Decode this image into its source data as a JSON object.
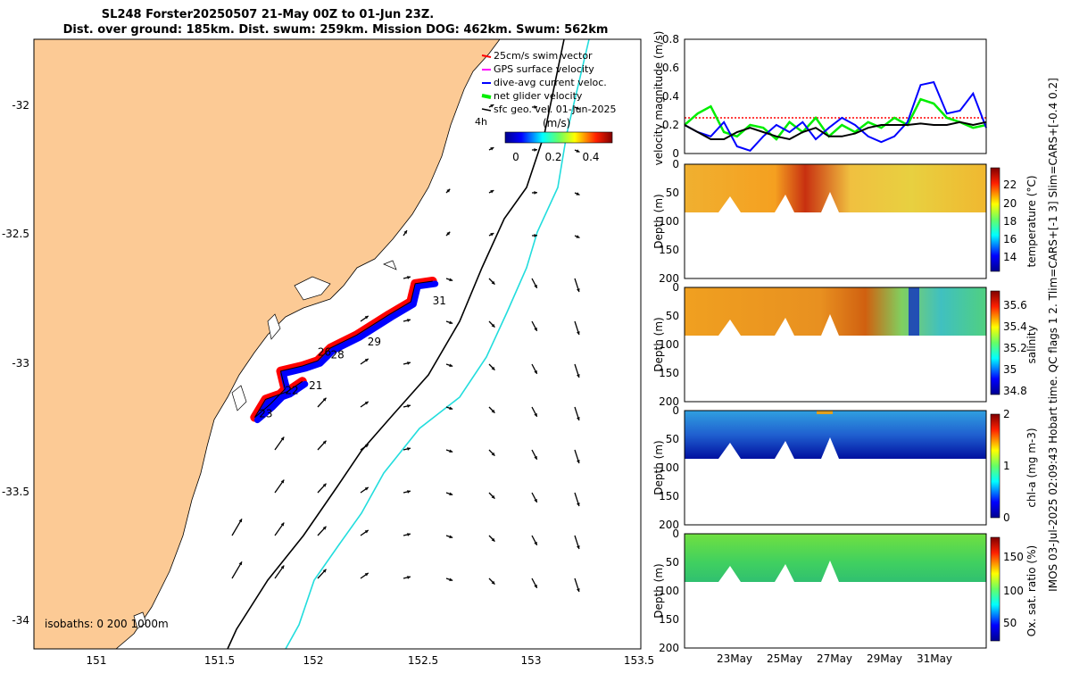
{
  "title_line1": "SL248 Forster20250507 21-May 00Z to 01-Jun 23Z.",
  "title_line2": "Dist. over ground: 185km. Dist. swum: 259km. Mission DOG: 462km. Swum: 562km",
  "side_note": "IMOS 03-Jul-2025 02:09:43 Hobart time. QC flags 1  2. Tlim=CARS+[-1 3] Slim=CARS+[-0.4 0.2]",
  "colors": {
    "land": "#fcca95",
    "sea": "#ffffff",
    "swim": "#ff0000",
    "gps": "#ff00ff",
    "dive": "#0000ff",
    "net": "#00ee00",
    "isobath_200": "#000000",
    "isobath_1000": "#22dddd"
  },
  "map": {
    "legend": [
      {
        "label": "25cm/s swim vector",
        "color": "#ff0000"
      },
      {
        "label": "GPS surface velocity",
        "color": "#ff00ff"
      },
      {
        "label": "dive-avg current veloc.",
        "color": "#0000ff"
      },
      {
        "label": "net glider velocity",
        "color": "#00ee00"
      },
      {
        "label": "sfc geo. vel. 01-Jun-2025",
        "color": "#000000"
      }
    ],
    "legend_age": "4h",
    "colorbar_title": "(m/s)",
    "colorbar_ticks": [
      "0",
      "0.2",
      "0.4"
    ],
    "isobath_note": "isobaths: 0  200  1000m",
    "x_ticks": [
      "151",
      "151.5",
      "152",
      "152.5",
      "153",
      "153.5"
    ],
    "y_ticks": [
      "-32",
      "-32.5",
      "-33",
      "-33.5",
      "-34"
    ],
    "day_labels": [
      "31",
      "29",
      "28",
      "26",
      "22",
      "21",
      "23"
    ]
  },
  "chart_data": [
    {
      "type": "map",
      "title": "SL248 Forster20250507 21-May 00Z to 01-Jun 23Z.",
      "xlim": [
        150.7,
        153.5
      ],
      "ylim": [
        -34.05,
        -31.75
      ],
      "xlabel": "",
      "ylabel": "",
      "track": [
        [
          152.55,
          -32.67
        ],
        [
          152.47,
          -32.68
        ],
        [
          152.45,
          -32.75
        ],
        [
          152.35,
          -32.8
        ],
        [
          152.2,
          -32.88
        ],
        [
          152.08,
          -32.93
        ],
        [
          152.02,
          -32.98
        ],
        [
          151.95,
          -33.0
        ],
        [
          151.85,
          -33.02
        ],
        [
          151.87,
          -33.09
        ],
        [
          151.8,
          -33.15
        ],
        [
          151.73,
          -33.2
        ],
        [
          151.78,
          -33.13
        ],
        [
          151.88,
          -33.1
        ],
        [
          151.95,
          -33.06
        ]
      ],
      "day_labels": [
        {
          "label": "31",
          "lon": 152.55,
          "lat": -32.76
        },
        {
          "label": "29",
          "lon": 152.25,
          "lat": -32.92
        },
        {
          "label": "28",
          "lon": 152.08,
          "lat": -32.97
        },
        {
          "label": "26",
          "lon": 152.02,
          "lat": -32.96
        },
        {
          "label": "22",
          "lon": 151.87,
          "lat": -33.11
        },
        {
          "label": "21",
          "lon": 151.98,
          "lat": -33.09
        },
        {
          "label": "23",
          "lon": 151.75,
          "lat": -33.2
        }
      ]
    },
    {
      "type": "line",
      "title": "",
      "ylabel": "velocity magnitude (m/s)",
      "ylim": [
        0,
        0.8
      ],
      "y_ticks": [
        "0",
        "0.2",
        "0.4",
        "0.6",
        "0.8"
      ],
      "x": [
        0,
        1,
        2,
        3,
        4,
        5,
        6,
        7,
        8,
        9,
        10,
        11,
        12,
        13,
        14,
        15,
        16,
        17,
        18,
        19,
        20,
        21,
        22,
        23
      ],
      "series": [
        {
          "name": "net glider velocity",
          "color": "#00ee00",
          "values": [
            0.2,
            0.28,
            0.33,
            0.15,
            0.12,
            0.2,
            0.18,
            0.1,
            0.22,
            0.15,
            0.25,
            0.12,
            0.2,
            0.15,
            0.22,
            0.18,
            0.25,
            0.2,
            0.38,
            0.35,
            0.25,
            0.22,
            0.18,
            0.2
          ]
        },
        {
          "name": "dive-avg current veloc.",
          "color": "#0000ff",
          "values": [
            0.2,
            0.15,
            0.12,
            0.22,
            0.05,
            0.02,
            0.12,
            0.2,
            0.15,
            0.22,
            0.1,
            0.18,
            0.25,
            0.2,
            0.12,
            0.08,
            0.12,
            0.22,
            0.48,
            0.5,
            0.28,
            0.3,
            0.42,
            0.18
          ]
        },
        {
          "name": "sfc geo. vel.",
          "color": "#000000",
          "values": [
            0.2,
            0.15,
            0.1,
            0.1,
            0.15,
            0.18,
            0.15,
            0.12,
            0.1,
            0.15,
            0.18,
            0.12,
            0.12,
            0.14,
            0.18,
            0.2,
            0.2,
            0.2,
            0.21,
            0.2,
            0.2,
            0.22,
            0.2,
            0.22
          ]
        },
        {
          "name": "25cm/s swim vector",
          "color": "#ff0000",
          "values": [
            0.25,
            0.25,
            0.25,
            0.25,
            0.25,
            0.25,
            0.25,
            0.25,
            0.25,
            0.25,
            0.25,
            0.25,
            0.25,
            0.25,
            0.25,
            0.25,
            0.25,
            0.25,
            0.25,
            0.25,
            0.25,
            0.25,
            0.25,
            0.25
          ]
        }
      ]
    },
    {
      "type": "heatmap",
      "ylabel": "Depth (m)",
      "colorbar_label": "temperature (°C)",
      "colorbar_ticks": [
        "14",
        "16",
        "18",
        "20",
        "22"
      ],
      "ylim": [
        200,
        0
      ],
      "y_ticks": [
        "0",
        "50",
        "100",
        "150",
        "200"
      ]
    },
    {
      "type": "heatmap",
      "ylabel": "Depth (m)",
      "colorbar_label": "salinity",
      "colorbar_ticks": [
        "34.8",
        "35",
        "35.2",
        "35.4",
        "35.6"
      ],
      "ylim": [
        200,
        0
      ],
      "y_ticks": [
        "0",
        "50",
        "100",
        "150",
        "200"
      ]
    },
    {
      "type": "heatmap",
      "ylabel": "Depth (m)",
      "colorbar_label": "chl-a (mg m-3)",
      "colorbar_ticks": [
        "0",
        "1",
        "2"
      ],
      "ylim": [
        200,
        0
      ],
      "y_ticks": [
        "0",
        "50",
        "100",
        "150",
        "200"
      ]
    },
    {
      "type": "heatmap",
      "ylabel": "Depth (m)",
      "colorbar_label": "Ox. sat. ratio (%)",
      "colorbar_ticks": [
        "50",
        "100",
        "150"
      ],
      "ylim": [
        200,
        0
      ],
      "y_ticks": [
        "0",
        "50",
        "100",
        "150",
        "200"
      ],
      "x_ticks": [
        "23May",
        "25May",
        "27May",
        "29May",
        "31May"
      ]
    }
  ]
}
